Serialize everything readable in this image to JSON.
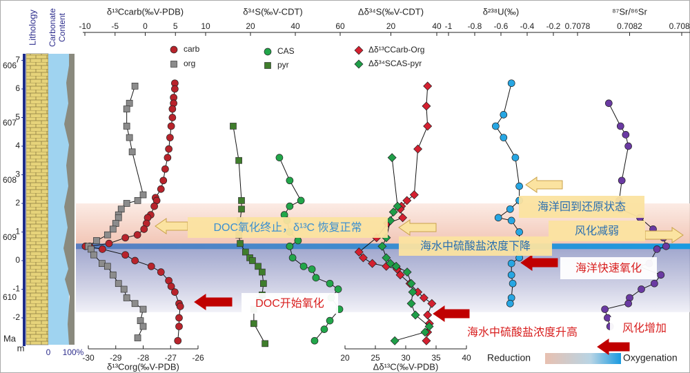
{
  "chart_data": {
    "type": "strat-column",
    "depth_axis": {
      "ylim": [
        -3,
        7.3
      ],
      "yticks": [
        -2,
        -1,
        0,
        1,
        2,
        3,
        4,
        5,
        6,
        7
      ],
      "label": "m",
      "age_label": "Ma",
      "age_ticks": [
        {
          "age": 606,
          "depth": 6.8
        },
        {
          "age": 607,
          "depth": 4.8
        },
        {
          "age": 608,
          "depth": 2.8
        },
        {
          "age": 609,
          "depth": 0.8
        },
        {
          "age": 610,
          "depth": -1.3
        }
      ]
    },
    "column_labels": [
      "Lithology",
      "Carbonate",
      "Content"
    ],
    "content_ticks": [
      "0",
      "100%"
    ],
    "zones": [
      {
        "from": 0.5,
        "to": 2.0
      },
      {
        "from": -1.8,
        "to": 0.5
      }
    ],
    "event_depth": 0.5,
    "panels": [
      {
        "top": {
          "label": "δ¹³Ccarb(‰V-PDB)",
          "xlim": [
            -10,
            10
          ],
          "xticks": [
            -10,
            -5,
            0,
            5,
            10
          ]
        },
        "bottom": {
          "label": "δ¹³Corg(‰V-PDB)",
          "xlim": [
            -30,
            -26
          ],
          "xticks": [
            -30,
            -29,
            -28,
            -27,
            -26
          ]
        },
        "series": [
          {
            "name": "carb",
            "color": "#b8232b",
            "marker": "circle",
            "axis": "top",
            "depth": [
              6.2,
              6.0,
              5.7,
              5.5,
              5.3,
              5.0,
              4.7,
              4.3,
              3.9,
              3.6,
              3.2,
              2.8,
              2.5,
              2.2,
              2.1,
              1.9,
              1.6,
              1.5,
              1.3,
              1.1,
              0.9,
              0.8,
              0.6,
              0.5,
              0.5,
              0.4,
              0.2,
              0,
              -0.2,
              -0.4,
              -0.7,
              -0.9,
              -1.1,
              -1.5,
              -1.6,
              -2.0,
              -2.3,
              -2.8
            ],
            "values": [
              4.9,
              4.9,
              4.7,
              4.7,
              4.5,
              4.5,
              4.3,
              4.1,
              3.9,
              3.7,
              3.3,
              3.0,
              2.6,
              1.7,
              1.9,
              1.5,
              0.9,
              0.4,
              0.2,
              -0.2,
              -1.3,
              -3.3,
              -6.0,
              -9.2,
              -9.9,
              -7.1,
              -3.3,
              -1.7,
              1.0,
              2.6,
              3.9,
              4.3,
              4.9,
              5.6,
              5.8,
              5.6,
              5.6,
              5.4
            ]
          },
          {
            "name": "org",
            "color": "#8c8c8c",
            "marker": "square",
            "axis": "bottom",
            "depth": [
              6.1,
              5.5,
              5.3,
              4.7,
              4.3,
              3.8,
              2.3,
              2.1,
              2.0,
              1.8,
              1.6,
              1.5,
              1.3,
              1.1,
              0.9,
              0.7,
              0.5,
              0.4,
              0.2,
              -0.1,
              -0.2,
              -0.5,
              -0.8,
              -1.0,
              -1.3,
              -1.5,
              -1.7,
              -2.1,
              -2.3,
              -2.7
            ],
            "values": [
              -28.3,
              -28.5,
              -28.6,
              -28.6,
              -28.5,
              -28.4,
              -28.0,
              -28.2,
              -28.6,
              -28.8,
              -28.9,
              -28.9,
              -29.0,
              -29.1,
              -29.3,
              -29.7,
              -30.0,
              -29.9,
              -29.8,
              -29.5,
              -29.3,
              -29.1,
              -28.9,
              -28.7,
              -28.6,
              -28.3,
              -28.0,
              -28.1,
              -28.0,
              -28.2
            ]
          }
        ]
      },
      {
        "top": {
          "label": "δ³⁴S(‰V-CDT)",
          "xlim": [
            0,
            60
          ],
          "xticks": [
            20,
            40,
            60
          ]
        },
        "series": [
          {
            "name": "CAS",
            "color": "#22a64a",
            "marker": "circle",
            "axis": "top",
            "depth": [
              3.6,
              2.8,
              2.1,
              1.9,
              1.6,
              1.4,
              1.0,
              0.7,
              0.5,
              0.1,
              -0.2,
              -0.3,
              -0.6,
              -0.8,
              -1.0,
              -1.3,
              -1.7,
              -2.1,
              -2.4,
              -2.8
            ],
            "values": [
              32.9,
              37.5,
              42.5,
              37.5,
              35.1,
              36.3,
              37.5,
              41.2,
              37.5,
              38.8,
              43.7,
              47.4,
              49.2,
              55.4,
              59.1,
              56.0,
              59.7,
              55.4,
              52.9,
              48.6
            ]
          },
          {
            "name": "pyr",
            "color": "#3f7d2c",
            "marker": "square",
            "axis": "top",
            "depth": [
              4.7,
              3.5,
              2.1,
              1.8,
              1.4,
              0.9,
              0.6,
              0.3,
              0.1,
              0,
              -0.2,
              -0.4,
              -0.8,
              -1.2,
              -1.4,
              -1.7,
              -2.2,
              -2.9
            ],
            "values": [
              12.3,
              14.8,
              16.0,
              16.0,
              15.4,
              14.8,
              15.4,
              17.8,
              19.7,
              20.9,
              23.4,
              25.2,
              25.8,
              25.2,
              24.0,
              21.5,
              21.5,
              26.5
            ]
          }
        ]
      },
      {
        "top": {
          "label": "Δδ³⁴S(‰V-CDT)",
          "xlim": [
            0,
            40
          ],
          "xticks": [
            20,
            40
          ]
        },
        "bottom": {
          "label": "Δδ¹³C(‰V-PDB)",
          "xlim": [
            20,
            40
          ],
          "xticks": [
            20,
            25,
            30,
            35,
            40
          ]
        },
        "series": [
          {
            "name": "Δδ¹³CCarb-Org",
            "color": "#d42030",
            "marker": "diamond",
            "axis": "bottom",
            "depth": [
              6.1,
              5.4,
              4.7,
              3.9,
              2.3,
              2.1,
              1.9,
              1.8,
              1.5,
              1.3,
              0.8,
              0.3,
              0.1,
              -0.1,
              -0.2,
              -0.3,
              -0.5,
              -0.8,
              -1.1,
              -1.3,
              -1.5,
              -1.9,
              -2.2,
              -2.5,
              -2.8
            ],
            "values": [
              33.6,
              33.4,
              33.6,
              32.0,
              31.4,
              30.2,
              29.3,
              29.1,
              29.5,
              27.0,
              25.2,
              22.3,
              23.0,
              24.5,
              26.8,
              28.6,
              29.1,
              30.7,
              32.0,
              33.0,
              34.3,
              33.6,
              33.9,
              33.6,
              33.4
            ]
          },
          {
            "name": "Δδ³⁴SCAS-pyr",
            "color": "#1f9e48",
            "marker": "diamond",
            "axis": "top",
            "depth": [
              3.6,
              1.9,
              1.7,
              1.4,
              0.8,
              0.5,
              0.1,
              -0.1,
              -0.2,
              -0.4,
              -0.8,
              -1.1,
              -1.5,
              -1.9,
              -2.3,
              -2.5,
              -2.8
            ],
            "values": [
              20.5,
              22.9,
              21.1,
              19.8,
              18.0,
              16.2,
              18.0,
              19.8,
              22.3,
              27.1,
              28.9,
              29.5,
              28.9,
              30.7,
              36.7,
              34.9,
              21.7
            ]
          }
        ]
      },
      {
        "top": {
          "label": "δ²³⁸U(‰)",
          "xlim": [
            -1,
            -0.2
          ],
          "xticks": [
            -1,
            -0.8,
            -0.6,
            -0.4,
            -0.2
          ]
        },
        "series": [
          {
            "color": "#27a6e3",
            "marker": "circle",
            "axis": "top",
            "depth": [
              6.2,
              5.1,
              4.7,
              4.3,
              3.6,
              2.6,
              2.1,
              1.8,
              1.5,
              1.4,
              1.0,
              0.6,
              0.4,
              0.1,
              -0.1,
              -0.5,
              -0.8,
              -1.3,
              -1.5
            ],
            "values": [
              -0.52,
              -0.58,
              -0.64,
              -0.58,
              -0.49,
              -0.46,
              -0.46,
              -0.53,
              -0.62,
              -0.52,
              -0.46,
              -0.46,
              -0.49,
              -0.46,
              -0.52,
              -0.52,
              -0.51,
              -0.52,
              -0.53
            ]
          }
        ]
      },
      {
        "top": {
          "label": "⁸⁷Sr/⁸⁶Sr",
          "xlim": [
            0.7078,
            0.7086
          ],
          "xticks": [
            0.7078,
            0.7082,
            0.7086
          ]
        },
        "series": [
          {
            "color": "#6a3aa2",
            "marker": "circle",
            "axis": "top",
            "depth": [
              5.5,
              4.7,
              4.4,
              4.0,
              2.8,
              2.1,
              1.8,
              1.5,
              1.1,
              0.8,
              0.5,
              0.4,
              -0.1,
              -0.2,
              -0.5,
              -0.8,
              -1.0,
              -1.3,
              -1.5,
              -1.7,
              -2.0,
              -2.3
            ],
            "values": [
              0.70804,
              0.70813,
              0.70817,
              0.70819,
              0.70814,
              0.70812,
              0.70813,
              0.70828,
              0.70838,
              0.70846,
              0.70848,
              0.70841,
              0.70835,
              0.70827,
              0.70844,
              0.70839,
              0.70829,
              0.7082,
              0.70819,
              0.70801,
              0.70803,
              0.70805
            ]
          }
        ]
      }
    ],
    "annotations": [
      "DOC氧化终止，δ¹³C 恢复正常",
      "海水中硫酸盐浓度下降",
      "海洋回到还原状态",
      "风化减弱",
      "DOC开始氧化",
      "海水中硫酸盐浓度升高",
      "海洋快速氧化",
      "风化增加"
    ],
    "gradient_legend": {
      "left": "Reduction",
      "right": "Oxygenation"
    }
  }
}
